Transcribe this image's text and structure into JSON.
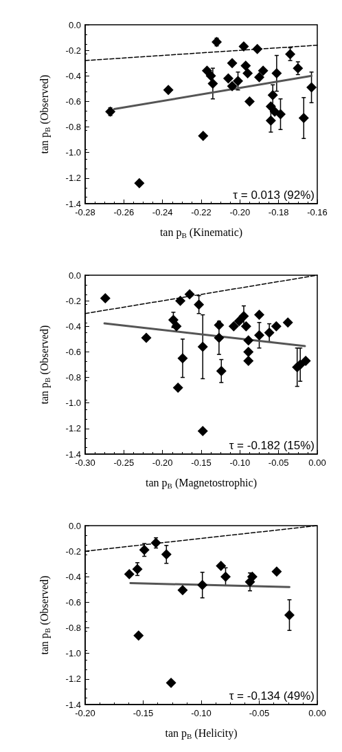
{
  "chart_data": [
    {
      "type": "scatter",
      "xlabel": "tan p$_{B}$ (Kinematic)",
      "ylabel": "tan p$_{B}$ (Observed)",
      "annotations": [
        "τ = 0.013 (92%)"
      ],
      "grid": false,
      "xlim": [
        -0.28,
        -0.16
      ],
      "xticks": [
        -0.28,
        -0.26,
        -0.24,
        -0.22,
        {
          "value": -0.2,
          "label": "-0.20"
        },
        -0.18,
        -0.16
      ],
      "ylim": [
        -1.4,
        0
      ],
      "yticks": [
        {
          "value": -1.4,
          "label": "-1.4"
        },
        {
          "value": -1.2,
          "label": "-1.2"
        },
        {
          "value": -1,
          "label": "-1.0"
        },
        {
          "value": -0.8,
          "label": "-0.8"
        },
        {
          "value": -0.6,
          "label": "-0.6"
        },
        {
          "value": -0.4,
          "label": "-0.4"
        },
        {
          "value": -0.2,
          "label": "-0.2"
        },
        {
          "value": 0,
          "label": "0.0"
        }
      ],
      "series": [
        {
          "type": "scatter",
          "marker": "diamond",
          "color": "#000000",
          "x": [
            -0.267,
            -0.252,
            -0.237,
            -0.219,
            -0.212,
            -0.217,
            -0.215,
            -0.214,
            -0.204,
            -0.206,
            -0.204,
            -0.201,
            -0.198,
            -0.197,
            -0.196,
            -0.195,
            -0.191,
            -0.188,
            -0.19,
            -0.174,
            -0.17,
            -0.181,
            -0.183,
            -0.184,
            -0.184,
            -0.179,
            -0.182,
            -0.167,
            -0.163
          ],
          "values": [
            -0.68,
            -1.24,
            -0.51,
            -0.87,
            -0.135,
            -0.36,
            -0.4,
            -0.46,
            -0.3,
            -0.42,
            -0.48,
            -0.44,
            -0.17,
            -0.32,
            -0.38,
            -0.6,
            -0.19,
            -0.36,
            -0.41,
            -0.23,
            -0.34,
            -0.38,
            -0.55,
            -0.64,
            -0.75,
            -0.7,
            -0.68,
            -0.73,
            -0.49
          ],
          "errors": [
            0.03,
            null,
            null,
            null,
            0.03,
            null,
            null,
            0.12,
            null,
            null,
            null,
            0.07,
            null,
            null,
            null,
            null,
            null,
            null,
            null,
            0.05,
            0.05,
            0.14,
            0.08,
            null,
            0.09,
            0.12,
            null,
            0.16,
            0.12
          ]
        },
        {
          "type": "line",
          "marker": "none",
          "line_style": "solid",
          "color": "#555555",
          "x": [
            -0.265,
            -0.163
          ],
          "values": [
            -0.66,
            -0.4
          ]
        },
        {
          "type": "line",
          "marker": "none",
          "line_style": "dashed",
          "color": "#000000",
          "x": [
            -0.28,
            -0.16
          ],
          "values": [
            -0.28,
            -0.16
          ]
        }
      ]
    },
    {
      "type": "scatter",
      "xlabel": "tan p$_{B}$ (Magnetostrophic)",
      "ylabel": "tan p$_{B}$ (Observed)",
      "annotations": [
        "τ = -0.182 (15%)"
      ],
      "grid": false,
      "xlim": [
        -0.3,
        0
      ],
      "xticks": [
        {
          "value": -0.3,
          "label": "-0.30"
        },
        -0.25,
        {
          "value": -0.2,
          "label": "-0.20"
        },
        -0.15,
        {
          "value": -0.1,
          "label": "-0.10"
        },
        -0.05,
        {
          "value": 0,
          "label": "0.00"
        }
      ],
      "ylim": [
        -1.4,
        0
      ],
      "yticks": [
        {
          "value": -1.4,
          "label": "-1.4"
        },
        {
          "value": -1.2,
          "label": "-1.2"
        },
        {
          "value": -1,
          "label": "-1.0"
        },
        {
          "value": -0.8,
          "label": "-0.8"
        },
        {
          "value": -0.6,
          "label": "-0.6"
        },
        {
          "value": -0.4,
          "label": "-0.4"
        },
        {
          "value": -0.2,
          "label": "-0.2"
        },
        {
          "value": 0,
          "label": "0.0"
        }
      ],
      "series": [
        {
          "type": "scatter",
          "marker": "diamond",
          "color": "#000000",
          "x": [
            -0.274,
            -0.221,
            -0.186,
            -0.182,
            -0.177,
            -0.174,
            -0.18,
            -0.165,
            -0.153,
            -0.148,
            -0.148,
            -0.127,
            -0.127,
            -0.124,
            -0.108,
            -0.101,
            -0.095,
            -0.092,
            -0.089,
            -0.089,
            -0.089,
            -0.075,
            -0.075,
            -0.062,
            -0.053,
            -0.038,
            -0.026,
            -0.022,
            -0.015
          ],
          "values": [
            -0.18,
            -0.49,
            -0.35,
            -0.4,
            -0.2,
            -0.65,
            -0.88,
            -0.15,
            -0.23,
            -0.56,
            -1.22,
            -0.39,
            -0.49,
            -0.75,
            -0.4,
            -0.36,
            -0.32,
            -0.4,
            -0.51,
            -0.6,
            -0.67,
            -0.31,
            -0.47,
            -0.45,
            -0.4,
            -0.37,
            -0.72,
            -0.7,
            -0.67
          ],
          "errors": [
            null,
            null,
            0.06,
            null,
            null,
            0.15,
            null,
            null,
            0.07,
            0.25,
            null,
            null,
            0.13,
            0.09,
            null,
            null,
            0.08,
            null,
            null,
            null,
            null,
            null,
            0.1,
            0.07,
            null,
            null,
            0.15,
            0.13,
            null
          ]
        },
        {
          "type": "line",
          "marker": "none",
          "line_style": "solid",
          "color": "#555555",
          "x": [
            -0.275,
            -0.016
          ],
          "values": [
            -0.377,
            -0.555
          ]
        },
        {
          "type": "line",
          "marker": "none",
          "line_style": "dashed",
          "color": "#000000",
          "x": [
            -0.3,
            0
          ],
          "values": [
            -0.3,
            0
          ]
        }
      ]
    },
    {
      "type": "scatter",
      "xlabel": "tan p$_{B}$ (Helicity)",
      "ylabel": "tan p$_{B}$ (Observed)",
      "annotations": [
        "τ = -0.134 (49%)"
      ],
      "grid": false,
      "xlim": [
        -0.2,
        0
      ],
      "xticks": [
        {
          "value": -0.2,
          "label": "-0.20"
        },
        -0.15,
        {
          "value": -0.1,
          "label": "-0.10"
        },
        -0.05,
        {
          "value": 0,
          "label": "0.00"
        }
      ],
      "ylim": [
        -1.4,
        0
      ],
      "yticks": [
        {
          "value": -1.4,
          "label": "-1.4"
        },
        {
          "value": -1.2,
          "label": "-1.2"
        },
        {
          "value": -1,
          "label": "-1.0"
        },
        {
          "value": -0.8,
          "label": "-0.8"
        },
        {
          "value": -0.6,
          "label": "-0.6"
        },
        {
          "value": -0.4,
          "label": "-0.4"
        },
        {
          "value": -0.2,
          "label": "-0.2"
        },
        {
          "value": 0,
          "label": "0.0"
        }
      ],
      "series": [
        {
          "type": "scatter",
          "marker": "diamond",
          "color": "#000000",
          "x": [
            -0.162,
            -0.155,
            -0.154,
            -0.149,
            -0.139,
            -0.13,
            -0.126,
            -0.116,
            -0.099,
            -0.083,
            -0.079,
            -0.058,
            -0.056,
            -0.035,
            -0.024
          ],
          "values": [
            -0.38,
            -0.34,
            -0.86,
            -0.19,
            -0.135,
            -0.225,
            -1.23,
            -0.505,
            -0.465,
            -0.315,
            -0.4,
            -0.44,
            -0.4,
            -0.36,
            -0.7
          ],
          "errors": [
            null,
            0.05,
            null,
            0.05,
            0.04,
            0.07,
            null,
            null,
            0.1,
            null,
            0.07,
            0.07,
            null,
            null,
            0.12
          ]
        },
        {
          "type": "line",
          "marker": "none",
          "line_style": "solid",
          "color": "#555555",
          "x": [
            -0.161,
            -0.024
          ],
          "values": [
            -0.45,
            -0.48
          ]
        },
        {
          "type": "line",
          "marker": "none",
          "line_style": "dashed",
          "color": "#000000",
          "x": [
            -0.2,
            0
          ],
          "values": [
            -0.2,
            0
          ]
        }
      ]
    }
  ]
}
